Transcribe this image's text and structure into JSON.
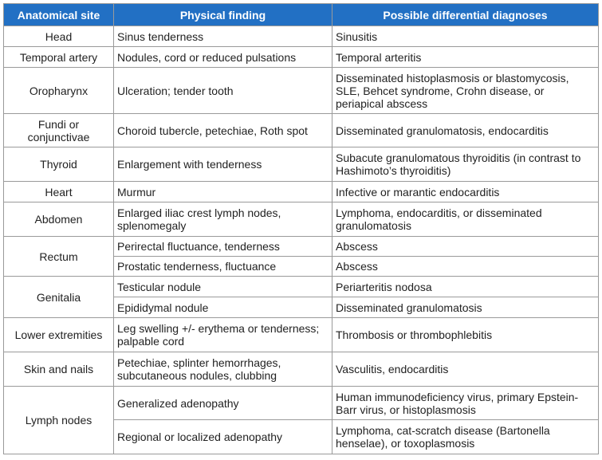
{
  "headers": [
    "Anatomical site",
    "Physical finding",
    "Possible differential diagnoses"
  ],
  "rows": [
    {
      "site": "Head",
      "finding": "Sinus tenderness",
      "diagnosis": "Sinusitis"
    },
    {
      "site": "Temporal artery",
      "finding": "Nodules, cord or reduced pulsations",
      "diagnosis": "Temporal arteritis"
    },
    {
      "site": "Oropharynx",
      "finding": "Ulceration; tender tooth",
      "diagnosis": "Disseminated histoplasmosis or blastomycosis, SLE, Behcet syndrome, Crohn disease, or periapical abscess"
    },
    {
      "site": "Fundi or conjunctivae",
      "finding": "Choroid tubercle, petechiae, Roth spot",
      "diagnosis": "Disseminated granulomatosis, endocarditis"
    },
    {
      "site": "Thyroid",
      "finding": "Enlargement with tenderness",
      "diagnosis": "Subacute granulomatous thyroiditis (in contrast to Hashimoto’s thyroiditis)"
    },
    {
      "site": "Heart",
      "finding": "Murmur",
      "diagnosis": "Infective or marantic endocarditis"
    },
    {
      "site": "Abdomen",
      "finding": "Enlarged iliac crest lymph nodes, splenomegaly",
      "diagnosis": "Lymphoma, endocarditis, or disseminated granulomatosis"
    },
    {
      "site": "Rectum",
      "finding": "Perirectal fluctuance, tenderness",
      "diagnosis": "Abscess"
    },
    {
      "site": "",
      "finding": "Prostatic tenderness, fluctuance",
      "diagnosis": "Abscess"
    },
    {
      "site": "Genitalia",
      "finding": "Testicular nodule",
      "diagnosis": "Periarteritis nodosa"
    },
    {
      "site": "",
      "finding": "Epididymal nodule",
      "diagnosis": "Disseminated granulomatosis"
    },
    {
      "site": "Lower extremities",
      "finding": "Leg swelling +/- erythema or tenderness; palpable cord",
      "diagnosis": "Thrombosis or thrombophlebitis"
    },
    {
      "site": "Skin and nails",
      "finding": "Petechiae, splinter hemorrhages, subcutaneous nodules, clubbing",
      "diagnosis": "Vasculitis, endocarditis"
    },
    {
      "site": "Lymph nodes",
      "finding": "Generalized adenopathy",
      "diagnosis": "Human immunodeficiency virus, primary Epstein-Barr virus, or histoplasmosis"
    },
    {
      "site": "",
      "finding": "Regional or localized adenopathy",
      "diagnosis": "Lymphoma, cat-scratch disease (Bartonella henselae), or toxoplasmosis"
    }
  ],
  "colors": {
    "header_bg": "#2270c4",
    "header_text": "#ffffff",
    "border": "#9a9a9a"
  }
}
